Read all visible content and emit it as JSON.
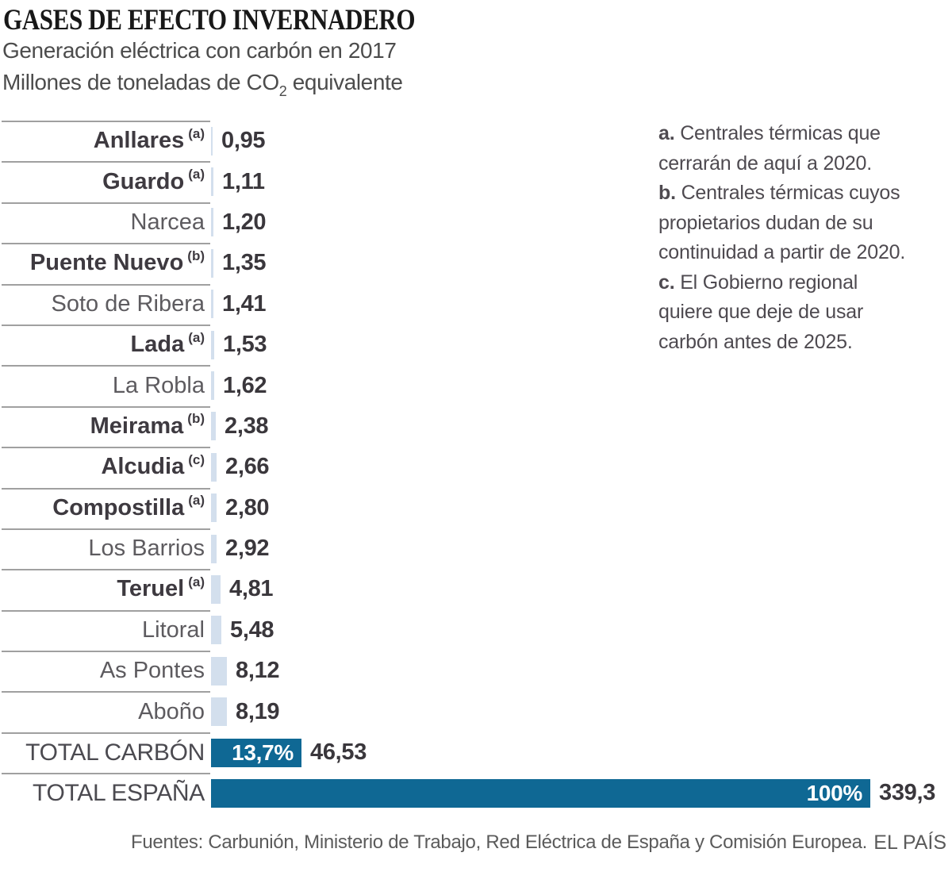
{
  "header": {
    "title": "GASES DE EFECTO INVERNADERO",
    "subtitle_line1": "Generación eléctrica con carbón en 2017",
    "subtitle_line2_prefix": "Millones de toneladas de CO",
    "subtitle_line2_sub": "2",
    "subtitle_line2_suffix": " equivalente"
  },
  "notes": [
    {
      "key": "a.",
      "text": "Centrales térmicas que cerrarán de aquí a 2020."
    },
    {
      "key": "b.",
      "text": "Centrales térmicas cuyos propietarios dudan de su continuidad a partir de 2020."
    },
    {
      "key": "c.",
      "text": "El Gobierno regional quiere que deje de usar carbón antes de 2025."
    }
  ],
  "chart_data": {
    "type": "bar",
    "orientation": "horizontal",
    "title": "GASES DE EFECTO INVERNADERO",
    "subtitle": "Generación eléctrica con carbón en 2017",
    "unit_label": "Millones de toneladas de CO2 equivalente",
    "xlim": [
      0,
      339.3
    ],
    "grid": false,
    "legend": "none",
    "colors": {
      "bar_plant": "#d3dfed",
      "bar_total": "#0f6894",
      "value_text": "#3a373c"
    },
    "categories": [
      "Anllares",
      "Guardo",
      "Narcea",
      "Puente Nuevo",
      "Soto de Ribera",
      "Lada",
      "La Robla",
      "Meirama",
      "Alcudia",
      "Compostilla",
      "Los Barrios",
      "Teruel",
      "Litoral",
      "As Pontes",
      "Aboño",
      "TOTAL CARBÓN",
      "TOTAL ESPAÑA"
    ],
    "values": [
      0.95,
      1.11,
      1.2,
      1.35,
      1.41,
      1.53,
      1.62,
      2.38,
      2.66,
      2.8,
      2.92,
      4.81,
      5.48,
      8.12,
      8.19,
      46.53,
      339.3
    ],
    "rows": [
      {
        "label": "Anllares",
        "note": "(a)",
        "bold": true,
        "kind": "plant",
        "value": 0.95,
        "display": "0,95",
        "pct": ""
      },
      {
        "label": "Guardo",
        "note": "(a)",
        "bold": true,
        "kind": "plant",
        "value": 1.11,
        "display": "1,11",
        "pct": ""
      },
      {
        "label": "Narcea",
        "note": "",
        "bold": false,
        "kind": "plant",
        "value": 1.2,
        "display": "1,20",
        "pct": ""
      },
      {
        "label": "Puente Nuevo",
        "note": "(b)",
        "bold": true,
        "kind": "plant",
        "value": 1.35,
        "display": "1,35",
        "pct": ""
      },
      {
        "label": "Soto de Ribera",
        "note": "",
        "bold": false,
        "kind": "plant",
        "value": 1.41,
        "display": "1,41",
        "pct": ""
      },
      {
        "label": "Lada",
        "note": "(a)",
        "bold": true,
        "kind": "plant",
        "value": 1.53,
        "display": "1,53",
        "pct": ""
      },
      {
        "label": "La Robla",
        "note": "",
        "bold": false,
        "kind": "plant",
        "value": 1.62,
        "display": "1,62",
        "pct": ""
      },
      {
        "label": "Meirama",
        "note": "(b)",
        "bold": true,
        "kind": "plant",
        "value": 2.38,
        "display": "2,38",
        "pct": ""
      },
      {
        "label": "Alcudia",
        "note": "(c)",
        "bold": true,
        "kind": "plant",
        "value": 2.66,
        "display": "2,66",
        "pct": ""
      },
      {
        "label": "Compostilla",
        "note": "(a)",
        "bold": true,
        "kind": "plant",
        "value": 2.8,
        "display": "2,80",
        "pct": ""
      },
      {
        "label": "Los Barrios",
        "note": "",
        "bold": false,
        "kind": "plant",
        "value": 2.92,
        "display": "2,92",
        "pct": ""
      },
      {
        "label": "Teruel",
        "note": "(a)",
        "bold": true,
        "kind": "plant",
        "value": 4.81,
        "display": "4,81",
        "pct": ""
      },
      {
        "label": "Litoral",
        "note": "",
        "bold": false,
        "kind": "plant",
        "value": 5.48,
        "display": "5,48",
        "pct": ""
      },
      {
        "label": "As Pontes",
        "note": "",
        "bold": false,
        "kind": "plant",
        "value": 8.12,
        "display": "8,12",
        "pct": ""
      },
      {
        "label": "Aboño",
        "note": "",
        "bold": false,
        "kind": "plant",
        "value": 8.19,
        "display": "8,19",
        "pct": ""
      },
      {
        "label": "TOTAL CARBÓN",
        "note": "",
        "bold": false,
        "kind": "total",
        "value": 46.53,
        "display": "46,53",
        "pct": "13,7%"
      },
      {
        "label": "TOTAL ESPAÑA",
        "note": "",
        "bold": false,
        "kind": "total",
        "value": 339.3,
        "display": "339,3",
        "pct": "100%"
      }
    ]
  },
  "footer": {
    "sources": "Fuentes: Carbunión, Ministerio de Trabajo, Red Eléctrica de España y Comisión Europea.",
    "brand": "EL PAÍS"
  }
}
